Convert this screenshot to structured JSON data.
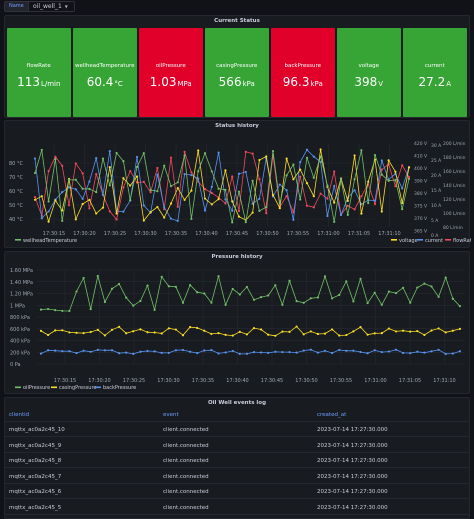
{
  "variable": {
    "label": "Name",
    "value": "oil_well_1"
  },
  "status_panel": {
    "title": "Current Status",
    "stats": [
      {
        "label": "flowRate",
        "value": "113",
        "unit": "L/min",
        "color": "#37a536"
      },
      {
        "label": "wellheadTemperature",
        "value": "60.4",
        "unit": "°C",
        "color": "#37a536"
      },
      {
        "label": "oilPressure",
        "value": "1.03",
        "unit": "MPa",
        "color": "#e0002a"
      },
      {
        "label": "casingPressure",
        "value": "566",
        "unit": "kPa",
        "color": "#37a536"
      },
      {
        "label": "backPressure",
        "value": "96.3",
        "unit": "kPa",
        "color": "#e0002a"
      },
      {
        "label": "voltage",
        "value": "398",
        "unit": "V",
        "color": "#37a536"
      },
      {
        "label": "current",
        "value": "27.2",
        "unit": "A",
        "color": "#37a536"
      }
    ]
  },
  "status_history": {
    "title": "Status history",
    "left_ticks": [
      "80 °C",
      "70 °C",
      "60 °C",
      "50 °C",
      "40 °C"
    ],
    "right_ticks_a": [
      "420 V",
      "410 V",
      "400 V",
      "390 V",
      "380 V",
      "375 V",
      "370 V",
      "365 V"
    ],
    "right_ticks_b": [
      "30 A",
      "25 A",
      "20 A",
      "15 A",
      "10 A",
      "5 A",
      "0 A"
    ],
    "right_ticks_c": [
      "200 L/min",
      "180 L/min",
      "160 L/min",
      "140 L/min",
      "120 L/min",
      "100 L/min",
      "80 L/min"
    ],
    "x_ticks": [
      "17:30:15",
      "17:30:20",
      "17:30:25",
      "17:30:30",
      "17:30:35",
      "17:30:40",
      "17:30:45",
      "17:30:50",
      "17:30:55",
      "17:31:00",
      "17:31:05",
      "17:31:10"
    ],
    "legend": [
      "wellheadTemperature",
      "voltage",
      "current",
      "flowRate"
    ],
    "colors": {
      "wellheadTemperature": "#73bf69",
      "voltage": "#fade2a",
      "current": "#5794f2",
      "flowRate": "#f2495c"
    }
  },
  "pressure_history": {
    "title": "Pressure history",
    "y_ticks": [
      "1.60 MPa",
      "1.40 MPa",
      "1.20 MPa",
      "1 MPa",
      "800 kPa",
      "600 kPa",
      "400 kPa",
      "200 kPa",
      "0 Pa"
    ],
    "x_ticks": [
      "17:30:15",
      "17:30:20",
      "17:30:25",
      "17:30:30",
      "17:30:35",
      "17:30:40",
      "17:30:45",
      "17:30:50",
      "17:30:55",
      "17:31:00",
      "17:31:05",
      "17:31:10"
    ],
    "legend": [
      "oilPressure",
      "casingPressure",
      "backPressure"
    ],
    "colors": {
      "oilPressure": "#73bf69",
      "casingPressure": "#fade2a",
      "backPressure": "#5794f2"
    }
  },
  "events_log": {
    "title": "Oil Well events log",
    "columns": [
      "clientid",
      "event",
      "created_at"
    ],
    "rows": [
      [
        "mqttx_ac0a2c45_10",
        "client.connected",
        "2023-07-14 17:27:30.000"
      ],
      [
        "mqttx_ac0a2c45_9",
        "client.connected",
        "2023-07-14 17:27:30.000"
      ],
      [
        "mqttx_ac0a2c45_8",
        "client.connected",
        "2023-07-14 17:27:30.000"
      ],
      [
        "mqttx_ac0a2c45_7",
        "client.connected",
        "2023-07-14 17:27:30.000"
      ],
      [
        "mqttx_ac0a2c45_6",
        "client.connected",
        "2023-07-14 17:27:30.000"
      ],
      [
        "mqttx_ac0a2c45_5",
        "client.connected",
        "2023-07-14 17:27:30.000"
      ]
    ]
  }
}
